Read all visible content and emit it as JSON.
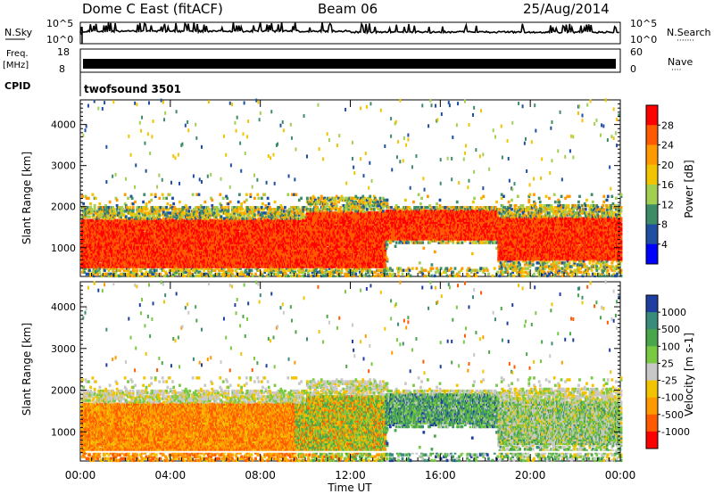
{
  "header": {
    "station": "Dome C East (fitACF)",
    "beam": "Beam 06",
    "date": "25/Aug/2014"
  },
  "sky_panel": {
    "left_label": "N.Sky",
    "left_ticks": [
      "10^5",
      "10^0"
    ],
    "right_ticks": [
      "10^5",
      "10^0"
    ],
    "right_label": "N.Search",
    "right_dots": "·······"
  },
  "freq_panel": {
    "left_label_1": "Freq.",
    "left_label_2": "[MHz]",
    "left_ticks": [
      "18",
      "8"
    ],
    "right_ticks": [
      "60",
      "0"
    ],
    "right_label": "Nave",
    "right_dots": "····"
  },
  "cpid": {
    "label": "CPID",
    "value": "twofsound 3501"
  },
  "chart_data": [
    {
      "type": "heatmap",
      "name": "power",
      "ylabel": "Slant Range [km]",
      "ylim": [
        300,
        4600
      ],
      "yticks": [
        "4000",
        "3000",
        "2000",
        "1000"
      ],
      "colorbar": {
        "label": "Power [dB]",
        "tick_labels": [
          "28",
          "24",
          "20",
          "16",
          "12",
          "8",
          "4"
        ],
        "colors": [
          "#ff0000",
          "#ff5a00",
          "#ff9900",
          "#f2c400",
          "#a2cf52",
          "#3d8c66",
          "#1f4fa0",
          "#0000ff"
        ]
      },
      "bands": [
        {
          "x": [
            0,
            13.5
          ],
          "y": [
            500,
            1700
          ],
          "value": "strong"
        },
        {
          "x": [
            14,
            18.5
          ],
          "y": [
            1200,
            1800
          ],
          "value": "strong"
        },
        {
          "x": [
            18.5,
            24
          ],
          "y": [
            700,
            1700
          ],
          "value": "strong"
        }
      ]
    },
    {
      "type": "heatmap",
      "name": "velocity",
      "ylabel": "Slant Range [km]",
      "ylim": [
        300,
        4600
      ],
      "yticks": [
        "4000",
        "3000",
        "2000",
        "1000"
      ],
      "colorbar": {
        "label": "Velocity [m s-1]",
        "tick_labels": [
          "1000",
          "500",
          "100",
          "25",
          "-25",
          "-100",
          "-500",
          "-1000"
        ],
        "colors": [
          "#1f3fa0",
          "#3a8c7a",
          "#4aa64a",
          "#7ac943",
          "#c8c8c8",
          "#f2c400",
          "#ff9900",
          "#ff5a00",
          "#ff0000"
        ]
      }
    }
  ],
  "x_axis": {
    "tick_labels": [
      "00:00",
      "04:00",
      "08:00",
      "12:00",
      "16:00",
      "20:00",
      "00:00"
    ],
    "label": "Time UT"
  }
}
